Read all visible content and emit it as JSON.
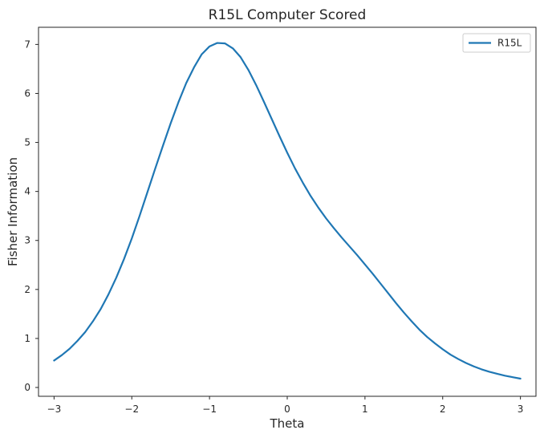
{
  "chart_data": {
    "type": "line",
    "title": "R15L Computer Scored",
    "xlabel": "Theta",
    "ylabel": "Fisher Information",
    "xlim": [
      -3.2,
      3.2
    ],
    "ylim": [
      -0.18,
      7.35
    ],
    "xticks": [
      -3,
      -2,
      -1,
      0,
      1,
      2,
      3
    ],
    "xtick_labels": [
      "−3",
      "−2",
      "−1",
      "0",
      "1",
      "2",
      "3"
    ],
    "yticks": [
      0,
      1,
      2,
      3,
      4,
      5,
      6,
      7
    ],
    "ytick_labels": [
      "0",
      "1",
      "2",
      "3",
      "4",
      "5",
      "6",
      "7"
    ],
    "grid": false,
    "legend_position": "top-right",
    "series": [
      {
        "name": "R15L",
        "color": "#1f77b4",
        "x": [
          -3.0,
          -2.9,
          -2.8,
          -2.7,
          -2.6,
          -2.5,
          -2.4,
          -2.3,
          -2.2,
          -2.1,
          -2.0,
          -1.9,
          -1.8,
          -1.7,
          -1.6,
          -1.5,
          -1.4,
          -1.3,
          -1.2,
          -1.1,
          -1.0,
          -0.9,
          -0.8,
          -0.7,
          -0.6,
          -0.5,
          -0.4,
          -0.3,
          -0.2,
          -0.1,
          0.0,
          0.1,
          0.2,
          0.3,
          0.4,
          0.5,
          0.6,
          0.7,
          0.8,
          0.9,
          1.0,
          1.1,
          1.2,
          1.3,
          1.4,
          1.5,
          1.6,
          1.7,
          1.8,
          1.9,
          2.0,
          2.1,
          2.2,
          2.3,
          2.4,
          2.5,
          2.6,
          2.7,
          2.8,
          2.9,
          3.0
        ],
        "y": [
          0.55,
          0.66,
          0.79,
          0.95,
          1.13,
          1.35,
          1.6,
          1.9,
          2.24,
          2.62,
          3.04,
          3.5,
          3.98,
          4.46,
          4.93,
          5.39,
          5.82,
          6.21,
          6.53,
          6.8,
          6.96,
          7.03,
          7.02,
          6.92,
          6.74,
          6.48,
          6.17,
          5.83,
          5.48,
          5.13,
          4.79,
          4.47,
          4.18,
          3.91,
          3.67,
          3.45,
          3.25,
          3.06,
          2.88,
          2.7,
          2.51,
          2.32,
          2.12,
          1.92,
          1.72,
          1.53,
          1.35,
          1.18,
          1.03,
          0.9,
          0.78,
          0.67,
          0.58,
          0.5,
          0.43,
          0.37,
          0.32,
          0.28,
          0.24,
          0.21,
          0.18
        ]
      }
    ]
  }
}
